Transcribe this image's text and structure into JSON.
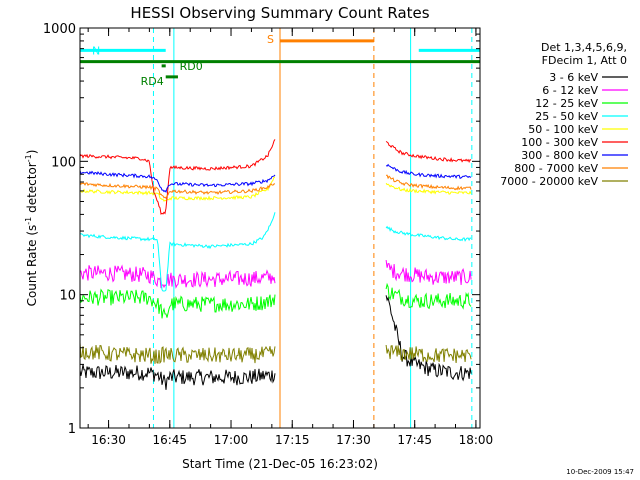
{
  "chart_data": {
    "type": "line",
    "title": "HESSI Observing Summary Count Rates",
    "xlabel": "Start Time (21-Dec-05 16:23:02)",
    "ylabel_main": "Count Rate (s",
    "ylabel_sup1": "-1",
    "ylabel_mid": " detector",
    "ylabel_sup2": "-1",
    "ylabel_end": ")",
    "y_scale": "log",
    "xlim": [
      "16:23",
      "18:01"
    ],
    "ylim": [
      1,
      1000
    ],
    "x_ticks": [
      "16:30",
      "16:45",
      "17:00",
      "17:15",
      "17:30",
      "17:45",
      "18:00"
    ],
    "y_ticks": [
      "1",
      "10",
      "100",
      "1000"
    ],
    "legend_header": [
      "Det 1,3,4,5,6,9,",
      "FDecim 1, Att 0"
    ],
    "series": [
      {
        "name": "3 - 6 keV",
        "color": "#000000",
        "segments": [
          {
            "t": [
              "16:23",
              "16:30",
              "16:40",
              "16:42",
              "16:43",
              "16:44",
              "16:45",
              "16:55",
              "17:05",
              "17:10",
              "17:11"
            ],
            "y": [
              2.6,
              2.6,
              2.6,
              2.5,
              2.3,
              2.2,
              2.4,
              2.4,
              2.4,
              2.5,
              2.6
            ]
          },
          {
            "t": [
              "17:38",
              "17:39",
              "17:40",
              "17:41",
              "17:42",
              "17:45",
              "17:50",
              "17:55",
              "17:59"
            ],
            "y": [
              10,
              8,
              6,
              4.5,
              3.5,
              3.0,
              2.7,
              2.6,
              2.6
            ]
          }
        ]
      },
      {
        "name": "6 - 12 keV",
        "color": "#ff00ff",
        "segments": [
          {
            "t": [
              "16:23",
              "16:30",
              "16:40",
              "16:42",
              "16:43",
              "16:44",
              "16:45",
              "16:55",
              "17:05",
              "17:10",
              "17:11"
            ],
            "y": [
              14.5,
              14.5,
              14,
              13,
              12.5,
              13,
              13,
              13,
              13.2,
              13.5,
              14
            ]
          },
          {
            "t": [
              "17:38",
              "17:40",
              "17:42",
              "17:45",
              "17:50",
              "17:55",
              "17:59"
            ],
            "y": [
              16,
              15,
              14.5,
              14,
              13.5,
              13.5,
              13.5
            ]
          }
        ]
      },
      {
        "name": "12 - 25 keV",
        "color": "#00ff00",
        "segments": [
          {
            "t": [
              "16:23",
              "16:30",
              "16:40",
              "16:42",
              "16:43",
              "16:44",
              "16:45",
              "16:55",
              "17:05",
              "17:10",
              "17:11"
            ],
            "y": [
              9.5,
              9.5,
              9.5,
              8.5,
              7.5,
              6.5,
              8.5,
              8.5,
              8.5,
              9,
              10
            ]
          },
          {
            "t": [
              "17:38",
              "17:40",
              "17:42",
              "17:45",
              "17:50",
              "17:55",
              "17:59"
            ],
            "y": [
              11,
              10,
              9.5,
              9,
              9,
              9,
              9
            ]
          }
        ]
      },
      {
        "name": "25 - 50 keV",
        "color": "#00ffff",
        "segments": [
          {
            "t": [
              "16:23",
              "16:30",
              "16:40",
              "16:42",
              "16:43",
              "16:44",
              "16:45",
              "16:55",
              "17:05",
              "17:08",
              "17:10",
              "17:11"
            ],
            "y": [
              28,
              27,
              26,
              26,
              11,
              10.5,
              24,
              23,
              24,
              27,
              35,
              45
            ]
          },
          {
            "t": [
              "17:38",
              "17:40",
              "17:42",
              "17:45",
              "17:50",
              "17:55",
              "17:59"
            ],
            "y": [
              32,
              30,
              29,
              28,
              27,
              26,
              26
            ]
          }
        ]
      },
      {
        "name": "50 - 100 keV",
        "color": "#ffff00",
        "segments": [
          {
            "t": [
              "16:23",
              "16:30",
              "16:40",
              "16:42",
              "16:43",
              "16:44",
              "16:45",
              "16:55",
              "17:05",
              "17:09",
              "17:11"
            ],
            "y": [
              60,
              59,
              58,
              57,
              52,
              50,
              53,
              53,
              54,
              62,
              80
            ]
          },
          {
            "t": [
              "17:38",
              "17:40",
              "17:42",
              "17:45",
              "17:50",
              "17:55",
              "17:59"
            ],
            "y": [
              68,
              64,
              61,
              60,
              59,
              58,
              58
            ]
          }
        ]
      },
      {
        "name": "100 - 300 keV",
        "color": "#ff0000",
        "segments": [
          {
            "t": [
              "16:23",
              "16:30",
              "16:38",
              "16:40",
              "16:41",
              "16:42",
              "16:43",
              "16:44",
              "16:45",
              "16:55",
              "17:05",
              "17:09",
              "17:11"
            ],
            "y": [
              110,
              108,
              105,
              100,
              60,
              50,
              40,
              42,
              90,
              88,
              92,
              110,
              150
            ]
          },
          {
            "t": [
              "17:38",
              "17:40",
              "17:42",
              "17:45",
              "17:50",
              "17:55",
              "17:59"
            ],
            "y": [
              140,
              125,
              115,
              110,
              105,
              102,
              100
            ]
          }
        ]
      },
      {
        "name": "300 - 800 keV",
        "color": "#0000ff",
        "segments": [
          {
            "t": [
              "16:23",
              "16:30",
              "16:40",
              "16:42",
              "16:43",
              "16:44",
              "16:45",
              "16:55",
              "17:05",
              "17:09",
              "17:11"
            ],
            "y": [
              83,
              80,
              77,
              72,
              62,
              60,
              68,
              66,
              68,
              72,
              80
            ]
          },
          {
            "t": [
              "17:38",
              "17:40",
              "17:42",
              "17:45",
              "17:50",
              "17:55",
              "17:59"
            ],
            "y": [
              95,
              88,
              83,
              80,
              78,
              77,
              76
            ]
          }
        ]
      },
      {
        "name": "800 - 7000 keV",
        "color": "#ff8000",
        "segments": [
          {
            "t": [
              "16:23",
              "16:30",
              "16:40",
              "16:42",
              "16:43",
              "16:44",
              "16:45",
              "16:55",
              "17:05",
              "17:09",
              "17:11"
            ],
            "y": [
              68,
              66,
              64,
              62,
              55,
              52,
              60,
              58,
              60,
              64,
              70
            ]
          },
          {
            "t": [
              "17:38",
              "17:40",
              "17:42",
              "17:45",
              "17:50",
              "17:55",
              "17:59"
            ],
            "y": [
              78,
              72,
              68,
              66,
              64,
              63,
              63
            ]
          }
        ]
      },
      {
        "name": "7000 - 20000 keV",
        "color": "#808000",
        "segments": [
          {
            "t": [
              "16:23",
              "16:30",
              "16:40",
              "16:42",
              "16:43",
              "16:44",
              "16:45",
              "16:55",
              "17:05",
              "17:10",
              "17:11"
            ],
            "y": [
              3.8,
              3.6,
              3.5,
              3.4,
              3.5,
              3.6,
              3.5,
              3.5,
              3.5,
              3.6,
              3.7
            ]
          },
          {
            "t": [
              "17:38",
              "17:40",
              "17:42",
              "17:45",
              "17:50",
              "17:55",
              "17:59"
            ],
            "y": [
              3.8,
              3.7,
              3.6,
              3.6,
              3.5,
              3.5,
              3.5
            ]
          }
        ]
      }
    ],
    "bars": [
      {
        "label": "N",
        "color": "#00ffff",
        "y": 680,
        "segments": [
          [
            "16:23",
            "16:44"
          ],
          [
            "17:46",
            "18:01"
          ]
        ]
      },
      {
        "label": "",
        "color": "#008000",
        "y": 560,
        "segments": [
          [
            "16:23",
            "18:01"
          ]
        ]
      },
      {
        "label": "RD4",
        "color": "#008000",
        "y": 430,
        "segments": [
          [
            "16:44",
            "16:47"
          ]
        ]
      },
      {
        "label": "RD0",
        "color": "#008000",
        "y": 520,
        "segments": [
          [
            "16:43",
            "16:44"
          ]
        ]
      },
      {
        "label": "S",
        "color": "#ff8000",
        "y": 800,
        "segments": [
          [
            "17:12",
            "17:35"
          ]
        ]
      }
    ],
    "vlines": [
      {
        "t": "16:23",
        "color": "#00ffff",
        "dash": false
      },
      {
        "t": "16:41",
        "color": "#00ffff",
        "dash": true
      },
      {
        "t": "16:46",
        "color": "#00ffff",
        "dash": false
      },
      {
        "t": "17:12",
        "color": "#ff8000",
        "dash": false
      },
      {
        "t": "17:35",
        "color": "#ff8000",
        "dash": true
      },
      {
        "t": "17:44",
        "color": "#00ffff",
        "dash": false
      },
      {
        "t": "17:59",
        "color": "#00ffff",
        "dash": true
      }
    ],
    "timestamp": "10-Dec-2009 15:47"
  }
}
